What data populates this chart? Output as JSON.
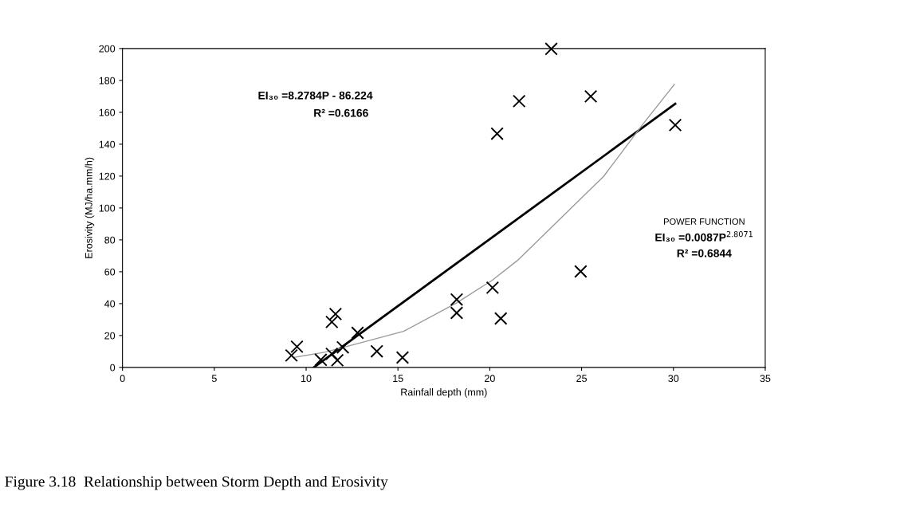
{
  "chart_data": {
    "type": "scatter",
    "xlabel": "Rainfall depth (mm)",
    "ylabel": "Erosivity (MJ/ha.mm/h)",
    "xlim": [
      0,
      35
    ],
    "ylim": [
      0,
      200
    ],
    "xticks": [
      0,
      5,
      10,
      15,
      20,
      25,
      30,
      35
    ],
    "yticks": [
      0,
      20,
      40,
      60,
      80,
      100,
      120,
      140,
      160,
      180,
      200
    ],
    "grid": false,
    "legend": false,
    "series": [
      {
        "marker": "cross",
        "color": "#000000",
        "x": [
          9.2,
          9.5,
          10.8,
          11.4,
          11.6,
          11.4,
          11.7,
          12.0,
          12.8,
          13.85,
          15.25,
          18.2,
          18.2,
          20.15,
          20.6,
          24.95,
          23.35,
          21.6,
          25.5,
          20.4,
          30.1
        ],
        "values": [
          7.5,
          13,
          4.8,
          28.5,
          33.5,
          8.5,
          4.5,
          12.6,
          21.7,
          10.1,
          6.2,
          42.6,
          34.2,
          50,
          30.7,
          60.2,
          199.8,
          167,
          170,
          146.6,
          152
        ]
      },
      {
        "type": "line",
        "line_style": "solid",
        "color": "#000000",
        "x": [
          10.42,
          30.1
        ],
        "values": [
          0,
          165.3
        ]
      },
      {
        "type": "line",
        "line_style": "solid",
        "color": "#9a9a9a",
        "x": [
          9.3,
          11,
          12.7,
          15.3,
          18.2,
          20.15,
          21.5,
          23.5,
          26.2,
          28.3,
          30.05
        ],
        "values": [
          6.2,
          9.5,
          14.6,
          22.6,
          40.5,
          54.8,
          67,
          89.5,
          119.8,
          152,
          177.5
        ]
      }
    ],
    "annotations": [
      "EI₃₀ =8.2784P - 86.224",
      "R² =0.6166",
      "POWER FUNCTION",
      "EI₃₀ =0.0087P$^{2.8071}$",
      "R² =0.6844",
      "Figure 3.18  Relationship between Storm Depth and Erosivity"
    ]
  }
}
